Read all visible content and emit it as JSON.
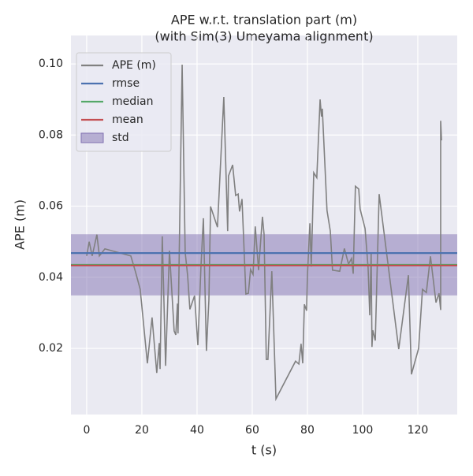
{
  "chart_data": {
    "type": "line",
    "title": "APE w.r.t. translation part (m)",
    "subtitle": "(with Sim(3) Umeyama alignment)",
    "x_label": "t (s)",
    "y_label": "APE (m)",
    "x": [
      0,
      0.9,
      2,
      3.7,
      4.6,
      6.6,
      16,
      17.7,
      19.4,
      22,
      23.7,
      25.4,
      26.3,
      26.6,
      27.4,
      28.6,
      30,
      31.7,
      32.3,
      32.9,
      33.1,
      34.6,
      35.7,
      36.6,
      37.4,
      39.1,
      40.3,
      41.4,
      42.3,
      43.4,
      44.3,
      44.9,
      47.4,
      49.7,
      51.1,
      51.4,
      52.9,
      54,
      54.9,
      55.4,
      56.3,
      57.7,
      58.6,
      59.4,
      60.3,
      61.1,
      62.3,
      63.7,
      64.3,
      65.1,
      65.7,
      67.1,
      68.6,
      75.7,
      76.9,
      77.7,
      78.3,
      78.9,
      79.7,
      80,
      80.9,
      81.4,
      82.3,
      83.4,
      84.6,
      85.1,
      85.4,
      87.1,
      88.3,
      89.1,
      91.7,
      93.4,
      94.9,
      96,
      96.6,
      97.4,
      98.6,
      99.1,
      100.9,
      102,
      102.6,
      103.1,
      103.4,
      103.7,
      104.6,
      106,
      113.1,
      116.6,
      117.7,
      120.3,
      121.7,
      123.1,
      124.6,
      126.6,
      127.7,
      128.3,
      128.3,
      128.6
    ],
    "series": [
      {
        "name": "APE (m)",
        "color": "#808080",
        "values": [
          0.046,
          0.05,
          0.046,
          0.052,
          0.046,
          0.048,
          0.046,
          0.0415,
          0.0366,
          0.0158,
          0.0287,
          0.0131,
          0.0215,
          0.0142,
          0.0515,
          0.0151,
          0.0475,
          0.0249,
          0.0238,
          0.0326,
          0.0242,
          0.0998,
          0.047,
          0.0404,
          0.031,
          0.0348,
          0.0209,
          0.0426,
          0.0566,
          0.0193,
          0.0337,
          0.0599,
          0.0541,
          0.0907,
          0.053,
          0.0685,
          0.0716,
          0.063,
          0.0634,
          0.0585,
          0.062,
          0.0353,
          0.0355,
          0.0422,
          0.0408,
          0.0543,
          0.042,
          0.057,
          0.052,
          0.0169,
          0.0169,
          0.0417,
          0.0058,
          0.0164,
          0.0156,
          0.0213,
          0.0158,
          0.0324,
          0.0306,
          0.0404,
          0.0552,
          0.043,
          0.0694,
          0.068,
          0.09,
          0.0852,
          0.0874,
          0.0588,
          0.053,
          0.042,
          0.0417,
          0.0481,
          0.0437,
          0.0453,
          0.041,
          0.0656,
          0.0648,
          0.0592,
          0.0537,
          0.0426,
          0.0293,
          0.047,
          0.0204,
          0.0251,
          0.0222,
          0.0634,
          0.0198,
          0.0406,
          0.0127,
          0.02,
          0.0366,
          0.0357,
          0.0459,
          0.0329,
          0.0355,
          0.0308,
          0.084,
          0.0785
        ]
      }
    ],
    "stats": [
      {
        "name": "rmse",
        "color": "#4c72b0",
        "value": 0.0468
      },
      {
        "name": "median",
        "color": "#55a868",
        "value": 0.0435
      },
      {
        "name": "mean",
        "color": "#c44e52",
        "value": 0.0433
      }
    ],
    "band": {
      "name": "std",
      "color": "#8172b2",
      "values": [
        0.0349,
        0.0521
      ]
    },
    "xlim": [
      -5.7,
      134.3
    ],
    "ylim": [
      0.0014,
      0.108
    ],
    "xticks": [
      0,
      20,
      40,
      60,
      80,
      100,
      120
    ],
    "yticks": [
      0.02,
      0.04,
      0.06,
      0.08,
      {
        "value": 0.1,
        "label": "0.10"
      }
    ],
    "grid": true,
    "legend": "upper left"
  }
}
